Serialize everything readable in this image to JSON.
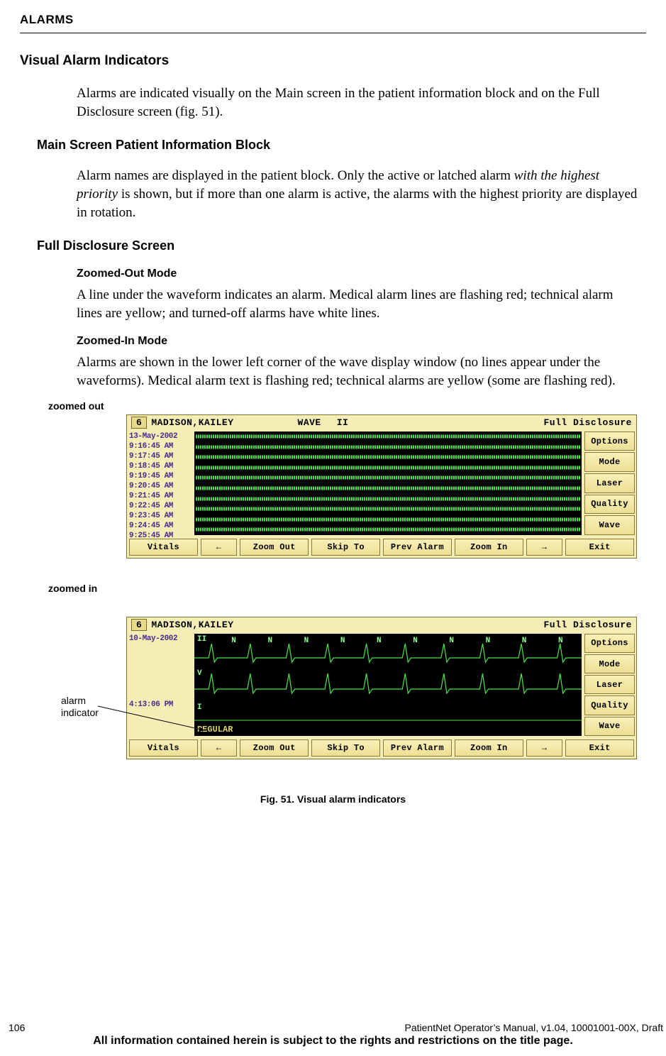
{
  "header": "ALARMS",
  "h2": "Visual Alarm Indicators",
  "p1a": "Alarms are indicated visually on the Main screen in the patient information block and on the Full Disclosure screen (fig. 51).",
  "h3a": "Main Screen Patient Information Block",
  "p2a": "Alarm names are displayed in the patient block. Only the active or latched alarm ",
  "p2b": "with the highest priority",
  "p2c": " is shown, but if more than one alarm is active, the alarms with the highest priority are displayed in rotation.",
  "h3b": "Full Disclosure Screen",
  "h4a": "Zoomed-Out Mode",
  "p3": "A line under the waveform indicates an alarm. Medical alarm lines are flashing red; technical alarm lines are yellow; and turned-off alarms have white lines.",
  "h4b": "Zoomed-In Mode",
  "p4": "Alarms are shown in the lower left corner of the wave display window (no lines appear under the waveforms). Medical alarm text is flashing red; technical alarms are yellow (some are flashing red).",
  "label_zo": "zoomed out",
  "label_zi": "zoomed in",
  "annot_alarm1": "alarm",
  "annot_alarm2": "indicator",
  "caption": "Fig. 51. Visual alarm indicators",
  "footer_page": "106",
  "footer_right": "PatientNet Operator’s Manual, v1.04, 10001001-00X, Draft",
  "footer_notice": "All information contained herein is subject to the rights and restrictions on the title page.",
  "panel": {
    "id": "6",
    "patient": "MADISON,KAILEY",
    "wave_lbl": "WAVE",
    "lead": "II",
    "mode": "Full Disclosure",
    "side_buttons": [
      "Options",
      "Mode",
      "Laser",
      "Quality",
      "Wave"
    ],
    "bottom_buttons": [
      "Vitals",
      "←",
      "Zoom Out",
      "Skip To",
      "Prev Alarm",
      "Zoom In",
      "→",
      "Exit"
    ]
  },
  "zoomed_out": {
    "date": "13-May-2002",
    "times": [
      "9:16:45 AM",
      "9:17:45 AM",
      "9:18:45 AM",
      "9:19:45 AM",
      "9:20:45 AM",
      "9:21:45 AM",
      "9:22:45 AM",
      "9:23:45 AM",
      "9:24:45 AM",
      "9:25:45 AM"
    ],
    "alarm_rows": [
      1,
      3,
      5
    ]
  },
  "zoomed_in": {
    "date": "10-May-2002",
    "time": "4:13:06 PM",
    "top_lbl": "II",
    "mid_lbl": "V",
    "bot_lbl": "I",
    "n_marks": [
      "N",
      "N",
      "N",
      "N",
      "N",
      "N",
      "N",
      "N",
      "N",
      "N"
    ],
    "status": "REGULAR"
  },
  "colors": {
    "panel_bg": "#f5edb6",
    "panel_border": "#807030",
    "btn_top": "#f9f0b8",
    "btn_bot": "#ecdf94",
    "btn_border": "#8a7a38",
    "wave_green": "#4bdf4b",
    "time_purple": "#4a2a8a",
    "status_yellow": "#d8d060"
  }
}
